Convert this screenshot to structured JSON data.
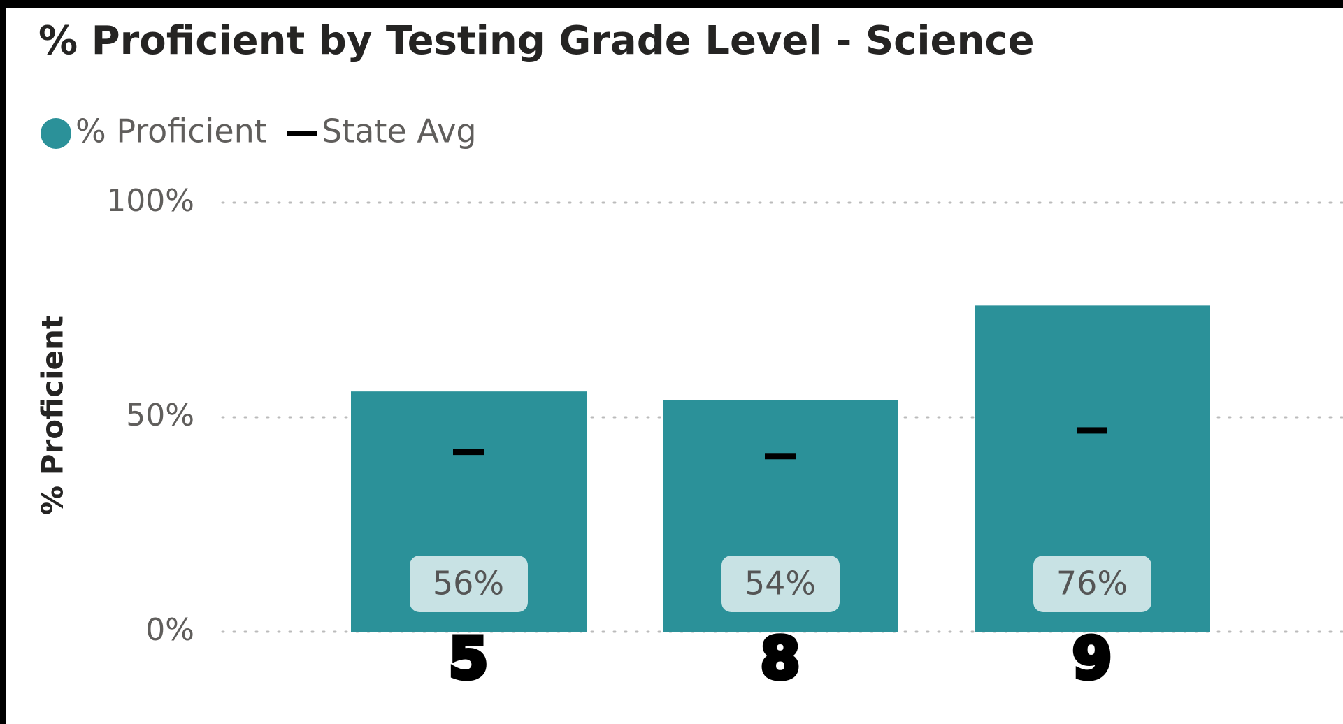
{
  "chart_data": {
    "type": "bar",
    "title": "% Proficient by Testing Grade Level - Science",
    "y_label": "% Proficient",
    "categories": [
      "5",
      "8",
      "9"
    ],
    "series": [
      {
        "name": "% Proficient",
        "color": "#2b9199",
        "values": [
          56,
          54,
          76
        ],
        "value_labels": [
          "56%",
          "54%",
          "76%"
        ]
      },
      {
        "name": "State Avg",
        "color": "#000000",
        "marker": "dash",
        "values": [
          42,
          41,
          47
        ]
      }
    ],
    "ylim": [
      0,
      100
    ],
    "yticks": [
      {
        "value": 0,
        "label": "0%"
      },
      {
        "value": 50,
        "label": "50%"
      },
      {
        "value": 100,
        "label": "100%"
      }
    ],
    "grid": true,
    "legend": "top-left"
  }
}
